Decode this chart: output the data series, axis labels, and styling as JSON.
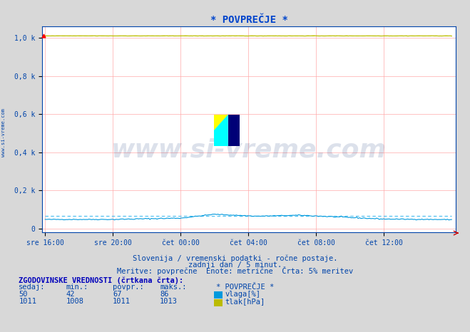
{
  "title": "* POVPREČJE *",
  "background_color": "#d8d8d8",
  "plot_bg_color": "#ffffff",
  "grid_color": "#ffaaaa",
  "xlabel_ticks": [
    "sre 16:00",
    "sre 20:00",
    "čet 00:00",
    "čet 04:00",
    "čet 08:00",
    "čet 12:00"
  ],
  "ylabel_ticks": [
    "0",
    "0,2 k",
    "0,4 k",
    "0,6 k",
    "0,8 k",
    "1,0 k"
  ],
  "ylabel_values": [
    0,
    200,
    400,
    600,
    800,
    1000
  ],
  "ylim": [
    -20,
    1060
  ],
  "n_points": 288,
  "humidity_color": "#0099dd",
  "humidity_dashed_color": "#44bbee",
  "pressure_color": "#bbbb00",
  "pressure_dashed_color": "#dddd00",
  "watermark_text": "www.si-vreme.com",
  "watermark_color": "#1a3a7a",
  "watermark_alpha": 0.15,
  "subtitle1": "Slovenija / vremenski podatki - ročne postaje.",
  "subtitle2": "zadnji dan / 5 minut.",
  "subtitle3": "Meritve: povprečne  Enote: metrične  Črta: 5% meritev",
  "subtitle_color": "#0044aa",
  "table_header": "ZGODOVINSKE VREDNOSTI (črtkana črta):",
  "table_row1": [
    "50",
    "42",
    "67",
    "86"
  ],
  "table_row1_label": "vlaga[%]",
  "table_row1_color": "#0099dd",
  "table_row2": [
    "1011",
    "1008",
    "1011",
    "1013"
  ],
  "table_row2_label": "tlak[hPa]",
  "table_row2_color": "#bbbb00",
  "title_color": "#0044cc",
  "axis_color": "#0044aa",
  "tick_color": "#0044aa",
  "left_watermark": "www.si-vreme.com",
  "left_watermark_color": "#0044aa",
  "arrow_color": "#cc0000"
}
